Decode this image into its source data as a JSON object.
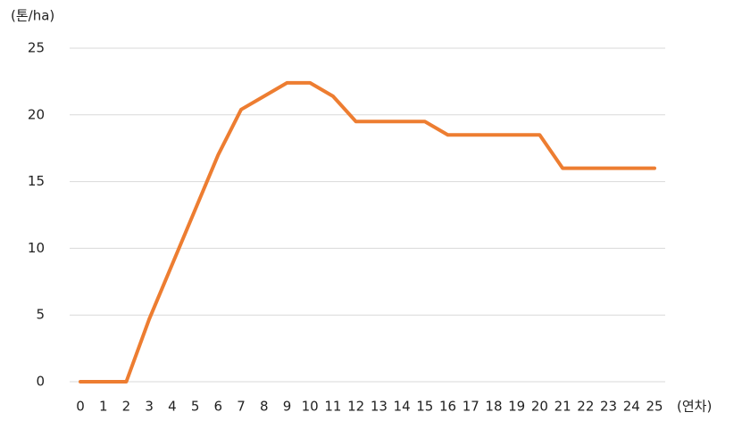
{
  "chart_data": {
    "type": "line",
    "y_label": "(톤/ha)",
    "x_label": "(연차)",
    "x": [
      0,
      1,
      2,
      3,
      4,
      5,
      6,
      7,
      8,
      9,
      10,
      11,
      12,
      13,
      14,
      15,
      16,
      17,
      18,
      19,
      20,
      21,
      22,
      23,
      24,
      25
    ],
    "series": [
      {
        "color": "#ed7d31",
        "values": [
          0,
          0,
          0,
          4.7,
          8.8,
          12.9,
          17,
          20.4,
          21.4,
          22.4,
          22.4,
          21.4,
          19.5,
          19.5,
          19.5,
          19.5,
          18.5,
          18.5,
          18.5,
          18.5,
          18.5,
          16,
          16,
          16,
          16,
          16
        ]
      }
    ],
    "xlim": [
      0,
      25
    ],
    "ylim": [
      0,
      25
    ],
    "yticks": [
      0,
      5,
      10,
      15,
      20,
      25
    ],
    "grid": true
  }
}
